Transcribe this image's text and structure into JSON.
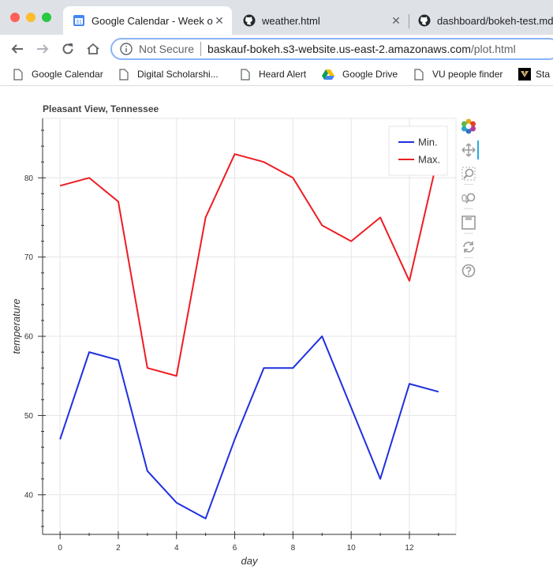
{
  "browser": {
    "tabs": [
      {
        "label": "Google Calendar - Week of",
        "favicon": "calendar-icon",
        "active": true
      },
      {
        "label": "weather.html",
        "favicon": "github-icon",
        "active": false
      },
      {
        "label": "dashboard/bokeh-test.md",
        "favicon": "github-icon",
        "active": false
      }
    ],
    "security_label": "Not Secure",
    "url_host": "baskauf-bokeh.s3-website.us-east-2.amazonaws.com",
    "url_path": "/plot.html",
    "bookmarks": [
      {
        "label": "Google Calendar",
        "icon": "page-icon"
      },
      {
        "label": "Digital Scholarshi...",
        "icon": "page-icon"
      },
      {
        "label": "Heard Alert",
        "icon": "page-icon"
      },
      {
        "label": "Google Drive",
        "icon": "google-drive-icon"
      },
      {
        "label": "VU people finder",
        "icon": "page-icon"
      },
      {
        "label": "Sta",
        "icon": "vanderbilt-icon"
      }
    ]
  },
  "plot": {
    "title": "Pleasant View, Tennessee",
    "toolbar": [
      "bokeh-logo-icon",
      "pan-icon",
      "box-zoom-icon",
      "wheel-zoom-icon",
      "save-icon",
      "reset-icon",
      "help-icon"
    ]
  },
  "colors": {
    "min": "#1f2fe0",
    "max": "#ee1c24",
    "grid": "#e5e5e5"
  },
  "chart_data": {
    "type": "line",
    "title": "Pleasant View, Tennessee",
    "xlabel": "day",
    "ylabel": "temperature",
    "x": [
      0,
      1,
      2,
      3,
      4,
      5,
      6,
      7,
      8,
      9,
      10,
      11,
      12,
      13
    ],
    "xlim": [
      -0.6,
      13.6
    ],
    "ylim": [
      35,
      87.5
    ],
    "xticks": [
      "0",
      "2",
      "4",
      "6",
      "8",
      "10",
      "12"
    ],
    "yticks": [
      "40",
      "50",
      "60",
      "70",
      "80"
    ],
    "legend": "top-right",
    "grid": true,
    "series": [
      {
        "name": "Min.",
        "color": "#1f2fe0",
        "values": [
          47,
          58,
          57,
          43,
          39,
          37,
          47,
          56,
          56,
          60,
          51,
          42,
          54,
          53
        ]
      },
      {
        "name": "Max.",
        "color": "#ee1c24",
        "values": [
          79,
          80,
          77,
          56,
          55,
          75,
          83,
          82,
          80,
          74,
          72,
          75,
          67,
          83
        ]
      }
    ]
  }
}
